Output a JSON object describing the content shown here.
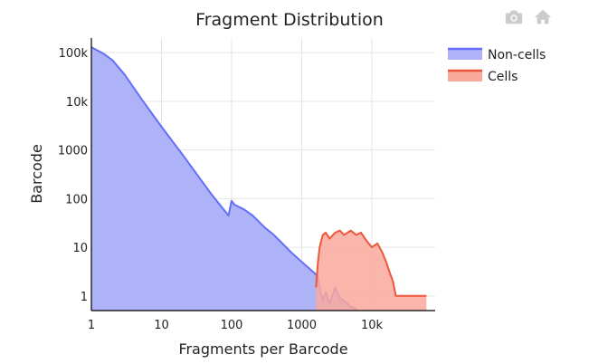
{
  "toolbar": {
    "camera_icon": "camera-icon",
    "home_icon": "home-icon",
    "icon_color": "#cccccc"
  },
  "chart_data": {
    "type": "area",
    "title": "Fragment Distribution",
    "xlabel": "Fragments per Barcode",
    "ylabel": "Barcode",
    "x_scale": "log",
    "y_scale": "log",
    "xlim": [
      1,
      80000
    ],
    "ylim": [
      0.5,
      200000
    ],
    "x_ticks": [
      1,
      10,
      100,
      1000,
      10000
    ],
    "x_tick_labels": [
      "1",
      "10",
      "100",
      "1000",
      "10k"
    ],
    "y_ticks": [
      1,
      10,
      100,
      1000,
      10000,
      100000
    ],
    "y_tick_labels": [
      "1",
      "10",
      "100",
      "1000",
      "10k",
      "100k"
    ],
    "grid": true,
    "legend_position": "top-right",
    "series": [
      {
        "name": "Non-cells",
        "color": "#636efa",
        "fill": "#aeb3f8",
        "x": [
          1,
          1.5,
          2,
          3,
          5,
          10,
          20,
          50,
          90,
          100,
          110,
          150,
          200,
          300,
          400,
          500,
          700,
          1000,
          1200,
          1500,
          1700,
          1800,
          2000,
          2200,
          2500,
          3000,
          3500,
          4000,
          5000,
          6000
        ],
        "y": [
          130000,
          95000,
          70000,
          35000,
          12000,
          3000,
          800,
          130,
          45,
          90,
          75,
          60,
          45,
          25,
          18,
          13,
          8,
          5,
          4,
          3,
          2.5,
          1.5,
          0.8,
          1.2,
          0.7,
          1.5,
          0.9,
          0.8,
          0.6,
          0.55
        ]
      },
      {
        "name": "Cells",
        "color": "#ef553b",
        "fill": "#f9a99b",
        "x": [
          1600,
          1700,
          1800,
          2000,
          2200,
          2500,
          3000,
          3500,
          4000,
          5000,
          6000,
          7000,
          8000,
          9000,
          10000,
          12000,
          14000,
          16000,
          18000,
          20000,
          22000,
          25000,
          30000,
          40000,
          60000
        ],
        "y": [
          1.5,
          5,
          10,
          18,
          20,
          15,
          20,
          22,
          18,
          22,
          18,
          20,
          15,
          12,
          10,
          12,
          8,
          5,
          3,
          2,
          1,
          1,
          1,
          1,
          1
        ]
      }
    ]
  }
}
